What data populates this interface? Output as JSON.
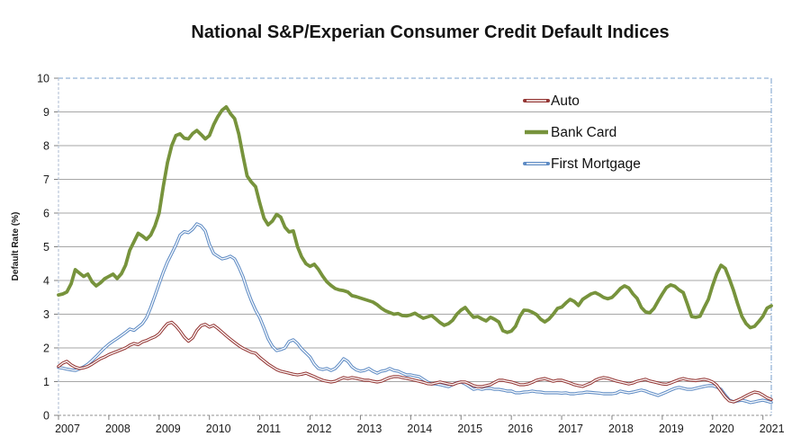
{
  "title": "National S&P/Experian Consumer Credit Default Indices",
  "y_axis_label": "Default Rate (%)",
  "colors": {
    "auto_line": "#943634",
    "bank_card_line": "#77933C",
    "first_mortgage_line": "#5E8BC4",
    "gridline": "#A6A6A6",
    "boundary_dashed": "#95B3D7",
    "tick": "#808080",
    "label_text": "#1a1a1a"
  },
  "chart_data": {
    "type": "line",
    "title": "National S&P/Experian Consumer Credit Default Indices",
    "xlabel": "",
    "ylabel": "Default Rate (%)",
    "ylim": [
      0,
      10
    ],
    "y_ticks": [
      0,
      1,
      2,
      3,
      4,
      5,
      6,
      7,
      8,
      9,
      10
    ],
    "grid": true,
    "legend_position": "top-right-inside",
    "x_unit": "monthly",
    "x_start_label": "Jan 2007",
    "x_end_label": "Mar 2021",
    "x_tick_labels": [
      "2007",
      "2008",
      "2009",
      "2010",
      "2011",
      "2012",
      "2013",
      "2014",
      "2015",
      "2016",
      "2017",
      "2018",
      "2019",
      "2020",
      "2021"
    ],
    "series": [
      {
        "name": "Auto",
        "color": "#943634",
        "style": "double-line",
        "values": [
          1.45,
          1.55,
          1.6,
          1.5,
          1.43,
          1.39,
          1.41,
          1.45,
          1.52,
          1.6,
          1.68,
          1.73,
          1.8,
          1.85,
          1.9,
          1.95,
          2.0,
          2.08,
          2.13,
          2.1,
          2.18,
          2.22,
          2.28,
          2.33,
          2.42,
          2.58,
          2.72,
          2.76,
          2.65,
          2.5,
          2.32,
          2.2,
          2.3,
          2.52,
          2.66,
          2.7,
          2.62,
          2.67,
          2.58,
          2.47,
          2.36,
          2.26,
          2.16,
          2.07,
          1.99,
          1.93,
          1.87,
          1.84,
          1.72,
          1.62,
          1.52,
          1.44,
          1.36,
          1.31,
          1.28,
          1.25,
          1.22,
          1.2,
          1.22,
          1.25,
          1.2,
          1.15,
          1.09,
          1.04,
          1.01,
          0.99,
          1.01,
          1.07,
          1.12,
          1.09,
          1.12,
          1.1,
          1.07,
          1.04,
          1.04,
          1.01,
          0.99,
          1.01,
          1.07,
          1.12,
          1.15,
          1.15,
          1.12,
          1.1,
          1.07,
          1.04,
          1.01,
          0.98,
          0.94,
          0.93,
          0.96,
          0.99,
          0.96,
          0.93,
          0.91,
          0.96,
          0.99,
          0.99,
          0.94,
          0.88,
          0.85,
          0.85,
          0.88,
          0.91,
          0.98,
          1.04,
          1.04,
          1.01,
          0.99,
          0.95,
          0.91,
          0.91,
          0.93,
          0.98,
          1.04,
          1.07,
          1.09,
          1.05,
          1.01,
          1.04,
          1.04,
          1.0,
          0.96,
          0.91,
          0.88,
          0.86,
          0.91,
          0.96,
          1.04,
          1.09,
          1.12,
          1.1,
          1.06,
          1.02,
          0.99,
          0.96,
          0.93,
          0.96,
          1.01,
          1.04,
          1.07,
          1.02,
          0.99,
          0.96,
          0.93,
          0.92,
          0.96,
          1.01,
          1.06,
          1.09,
          1.06,
          1.04,
          1.03,
          1.05,
          1.07,
          1.04,
          0.99,
          0.89,
          0.72,
          0.55,
          0.43,
          0.4,
          0.45,
          0.51,
          0.58,
          0.64,
          0.69,
          0.67,
          0.6,
          0.52,
          0.47
        ]
      },
      {
        "name": "Bank Card",
        "color": "#77933C",
        "style": "solid",
        "values": [
          3.57,
          3.6,
          3.66,
          3.9,
          4.32,
          4.22,
          4.12,
          4.19,
          3.96,
          3.84,
          3.93,
          4.05,
          4.12,
          4.19,
          4.06,
          4.2,
          4.45,
          4.9,
          5.15,
          5.4,
          5.32,
          5.22,
          5.35,
          5.62,
          6.0,
          6.8,
          7.5,
          8.0,
          8.3,
          8.35,
          8.22,
          8.2,
          8.36,
          8.45,
          8.33,
          8.2,
          8.3,
          8.62,
          8.86,
          9.05,
          9.15,
          8.95,
          8.8,
          8.35,
          7.7,
          7.1,
          6.92,
          6.78,
          6.3,
          5.85,
          5.65,
          5.76,
          5.96,
          5.88,
          5.58,
          5.44,
          5.47,
          5.0,
          4.7,
          4.5,
          4.42,
          4.48,
          4.33,
          4.13,
          3.96,
          3.85,
          3.76,
          3.72,
          3.7,
          3.66,
          3.55,
          3.52,
          3.48,
          3.44,
          3.4,
          3.36,
          3.28,
          3.18,
          3.1,
          3.05,
          3.0,
          3.02,
          2.96,
          2.95,
          2.98,
          3.03,
          2.95,
          2.88,
          2.92,
          2.96,
          2.86,
          2.75,
          2.67,
          2.72,
          2.82,
          3.0,
          3.12,
          3.2,
          3.04,
          2.91,
          2.93,
          2.86,
          2.8,
          2.91,
          2.85,
          2.77,
          2.51,
          2.46,
          2.5,
          2.64,
          2.93,
          3.12,
          3.11,
          3.06,
          2.99,
          2.85,
          2.77,
          2.86,
          3.0,
          3.17,
          3.21,
          3.33,
          3.44,
          3.38,
          3.26,
          3.44,
          3.52,
          3.6,
          3.64,
          3.58,
          3.5,
          3.46,
          3.5,
          3.62,
          3.76,
          3.84,
          3.78,
          3.6,
          3.47,
          3.2,
          3.07,
          3.04,
          3.17,
          3.39,
          3.6,
          3.79,
          3.87,
          3.83,
          3.72,
          3.64,
          3.3,
          2.93,
          2.91,
          2.94,
          3.2,
          3.44,
          3.85,
          4.2,
          4.45,
          4.36,
          4.05,
          3.7,
          3.3,
          2.93,
          2.72,
          2.6,
          2.64,
          2.78,
          2.94,
          3.18,
          3.25
        ]
      },
      {
        "name": "First Mortgage",
        "color": "#5E8BC4",
        "style": "double-line",
        "values": [
          1.42,
          1.4,
          1.37,
          1.35,
          1.33,
          1.38,
          1.44,
          1.52,
          1.63,
          1.75,
          1.88,
          2.0,
          2.11,
          2.2,
          2.28,
          2.37,
          2.46,
          2.56,
          2.52,
          2.62,
          2.72,
          2.9,
          3.2,
          3.55,
          3.9,
          4.25,
          4.55,
          4.8,
          5.05,
          5.35,
          5.45,
          5.42,
          5.52,
          5.68,
          5.62,
          5.47,
          5.07,
          4.8,
          4.72,
          4.64,
          4.67,
          4.72,
          4.64,
          4.4,
          4.11,
          3.73,
          3.4,
          3.12,
          2.9,
          2.59,
          2.27,
          2.05,
          1.92,
          1.95,
          2.0,
          2.19,
          2.24,
          2.13,
          1.97,
          1.85,
          1.73,
          1.52,
          1.39,
          1.36,
          1.39,
          1.33,
          1.39,
          1.52,
          1.68,
          1.6,
          1.44,
          1.35,
          1.31,
          1.33,
          1.39,
          1.31,
          1.25,
          1.31,
          1.33,
          1.39,
          1.33,
          1.31,
          1.25,
          1.2,
          1.2,
          1.17,
          1.15,
          1.07,
          0.99,
          0.93,
          0.93,
          0.91,
          0.88,
          0.85,
          0.91,
          0.97,
          0.99,
          0.93,
          0.85,
          0.77,
          0.8,
          0.77,
          0.8,
          0.8,
          0.77,
          0.77,
          0.75,
          0.72,
          0.72,
          0.67,
          0.67,
          0.69,
          0.7,
          0.72,
          0.7,
          0.69,
          0.67,
          0.67,
          0.67,
          0.67,
          0.66,
          0.67,
          0.64,
          0.64,
          0.66,
          0.67,
          0.69,
          0.68,
          0.67,
          0.66,
          0.64,
          0.64,
          0.64,
          0.66,
          0.72,
          0.69,
          0.67,
          0.69,
          0.72,
          0.75,
          0.72,
          0.67,
          0.63,
          0.59,
          0.64,
          0.69,
          0.75,
          0.8,
          0.83,
          0.8,
          0.77,
          0.77,
          0.8,
          0.83,
          0.86,
          0.88,
          0.88,
          0.84,
          0.77,
          0.6,
          0.45,
          0.4,
          0.43,
          0.45,
          0.42,
          0.38,
          0.4,
          0.43,
          0.45,
          0.42,
          0.38
        ]
      }
    ]
  }
}
